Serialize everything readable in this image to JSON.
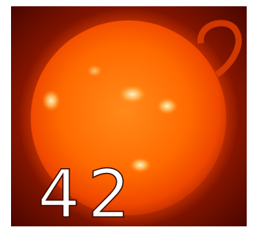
{
  "text": "42"
}
